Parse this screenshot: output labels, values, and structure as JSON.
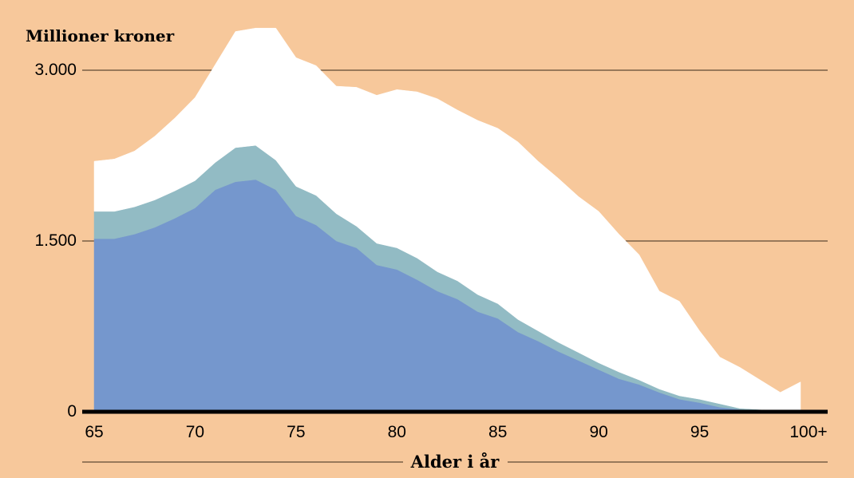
{
  "chart_data": {
    "type": "area",
    "stacked": true,
    "ylabel": "Millioner kroner",
    "xlabel": "Alder i år",
    "ylim": [
      0,
      3000
    ],
    "xlim": [
      65,
      100
    ],
    "grid": true,
    "legend": "none",
    "x_ticks": [
      {
        "value": 65,
        "label": "65"
      },
      {
        "value": 70,
        "label": "70"
      },
      {
        "value": 75,
        "label": "75"
      },
      {
        "value": 80,
        "label": "80"
      },
      {
        "value": 85,
        "label": "85"
      },
      {
        "value": 90,
        "label": "90"
      },
      {
        "value": 95,
        "label": "95"
      },
      {
        "value": 100,
        "label": "100+"
      }
    ],
    "y_ticks": [
      {
        "value": 0,
        "label": "0"
      },
      {
        "value": 1500,
        "label": "1.500"
      },
      {
        "value": 3000,
        "label": "3.000"
      }
    ],
    "x": [
      65,
      66,
      67,
      68,
      69,
      70,
      71,
      72,
      73,
      74,
      75,
      76,
      77,
      78,
      79,
      80,
      81,
      82,
      83,
      84,
      85,
      86,
      87,
      88,
      89,
      90,
      91,
      92,
      93,
      94,
      95,
      96,
      97,
      98,
      99,
      100
    ],
    "series": [
      {
        "color": "#7597cd",
        "values": [
          1520,
          1520,
          1560,
          1620,
          1700,
          1790,
          1950,
          2020,
          2040,
          1950,
          1720,
          1640,
          1500,
          1440,
          1290,
          1250,
          1160,
          1060,
          990,
          880,
          820,
          700,
          620,
          530,
          450,
          370,
          290,
          240,
          170,
          110,
          80,
          40,
          20,
          10,
          5,
          0
        ]
      },
      {
        "color": "#92bbc4",
        "values": [
          240,
          240,
          240,
          240,
          240,
          240,
          240,
          300,
          300,
          260,
          260,
          260,
          240,
          190,
          190,
          190,
          190,
          170,
          160,
          150,
          130,
          110,
          90,
          80,
          70,
          60,
          60,
          40,
          30,
          30,
          30,
          30,
          10,
          10,
          5,
          2
        ]
      },
      {
        "color": "#ffffff",
        "values": [
          440,
          460,
          490,
          560,
          640,
          730,
          860,
          1020,
          1030,
          1160,
          1130,
          1140,
          1120,
          1220,
          1300,
          1390,
          1460,
          1520,
          1500,
          1530,
          1540,
          1560,
          1490,
          1440,
          1370,
          1330,
          1210,
          1100,
          860,
          830,
          600,
          410,
          360,
          260,
          160,
          260
        ]
      }
    ]
  }
}
